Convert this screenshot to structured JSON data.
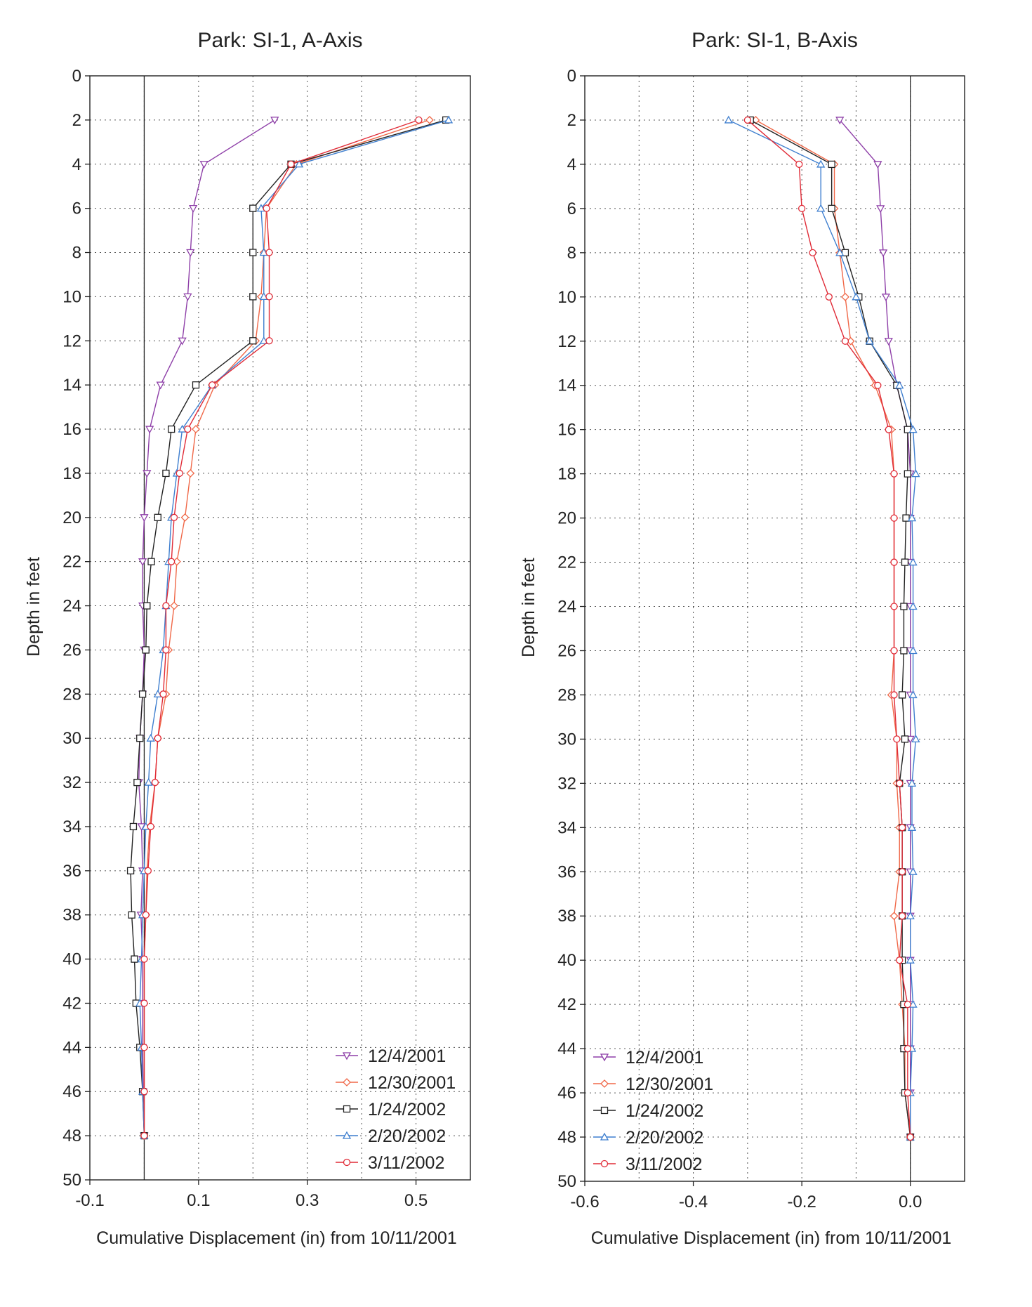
{
  "chart_data": [
    {
      "type": "line",
      "title": "Park: SI-1, A-Axis",
      "xlabel": "Cumulative Displacement (in) from 10/11/2001",
      "ylabel": "Depth in feet",
      "xlim": [
        -0.1,
        0.6
      ],
      "ylim": [
        0,
        50
      ],
      "y_inverted": true,
      "x_ticks": [
        "-0.1",
        "0.1",
        "0.3",
        "0.5"
      ],
      "x_tick_values": [
        -0.1,
        0.1,
        0.3,
        0.5
      ],
      "x_grid_values": [
        0.0,
        0.1,
        0.2,
        0.3,
        0.4,
        0.5
      ],
      "y_ticks": [
        "0",
        "2",
        "4",
        "6",
        "8",
        "10",
        "12",
        "14",
        "16",
        "18",
        "20",
        "22",
        "24",
        "26",
        "28",
        "30",
        "32",
        "34",
        "36",
        "38",
        "40",
        "42",
        "44",
        "46",
        "48",
        "50"
      ],
      "zero_line": 0,
      "grid": true,
      "legend_position": "bottom-right",
      "depth": [
        2,
        4,
        6,
        8,
        10,
        12,
        14,
        16,
        18,
        20,
        22,
        24,
        26,
        28,
        30,
        32,
        34,
        36,
        38,
        40,
        42,
        44,
        46,
        48
      ],
      "series": [
        {
          "name": "12/4/2001",
          "color": "#8e3fa8",
          "marker": "triangle-down",
          "values": [
            0.24,
            0.11,
            0.09,
            0.085,
            0.08,
            0.07,
            0.03,
            0.01,
            0.005,
            0.0,
            -0.003,
            -0.003,
            0.0,
            -0.003,
            -0.008,
            -0.01,
            -0.005,
            -0.003,
            -0.006,
            -0.003,
            -0.003,
            -0.003,
            -0.002,
            0.0
          ]
        },
        {
          "name": "12/30/2001",
          "color": "#f06848",
          "marker": "diamond",
          "values": [
            0.525,
            0.28,
            0.225,
            0.22,
            0.215,
            0.205,
            0.13,
            0.095,
            0.085,
            0.075,
            0.06,
            0.055,
            0.045,
            0.04,
            0.025,
            0.02,
            0.01,
            0.005,
            0.003,
            0.0,
            0.0,
            0.0,
            0.0,
            0.0
          ]
        },
        {
          "name": "1/24/2002",
          "color": "#222222",
          "marker": "square",
          "values": [
            0.555,
            0.27,
            0.2,
            0.2,
            0.2,
            0.2,
            0.095,
            0.05,
            0.04,
            0.025,
            0.013,
            0.005,
            0.003,
            -0.003,
            -0.008,
            -0.013,
            -0.02,
            -0.025,
            -0.023,
            -0.018,
            -0.015,
            -0.008,
            -0.003,
            0.0
          ]
        },
        {
          "name": "2/20/2002",
          "color": "#3f7fcf",
          "marker": "triangle-up",
          "values": [
            0.56,
            0.285,
            0.215,
            0.22,
            0.22,
            0.22,
            0.125,
            0.07,
            0.06,
            0.05,
            0.045,
            0.04,
            0.035,
            0.025,
            0.012,
            0.008,
            0.003,
            0.0,
            -0.003,
            -0.005,
            -0.008,
            -0.005,
            -0.003,
            0.0
          ]
        },
        {
          "name": "3/11/2002",
          "color": "#e02b37",
          "marker": "circle",
          "values": [
            0.505,
            0.27,
            0.225,
            0.23,
            0.23,
            0.23,
            0.125,
            0.08,
            0.065,
            0.055,
            0.05,
            0.04,
            0.04,
            0.035,
            0.025,
            0.02,
            0.012,
            0.007,
            0.003,
            0.0,
            0.0,
            0.0,
            0.0,
            0.0
          ]
        }
      ]
    },
    {
      "type": "line",
      "title": "Park: SI-1, B-Axis",
      "xlabel": "Cumulative Displacement (in) from 10/11/2001",
      "ylabel": "Depth in feet",
      "xlim": [
        -0.6,
        0.1
      ],
      "ylim": [
        0,
        50
      ],
      "y_inverted": true,
      "x_ticks": [
        "-0.6",
        "-0.4",
        "-0.2",
        "0.0"
      ],
      "x_tick_values": [
        -0.6,
        -0.4,
        -0.2,
        0.0
      ],
      "x_grid_values": [
        -0.5,
        -0.4,
        -0.3,
        -0.2,
        -0.1,
        0.0
      ],
      "y_ticks": [
        "0",
        "2",
        "4",
        "6",
        "8",
        "10",
        "12",
        "14",
        "16",
        "18",
        "20",
        "22",
        "24",
        "26",
        "28",
        "30",
        "32",
        "34",
        "36",
        "38",
        "40",
        "42",
        "44",
        "46",
        "48",
        "50"
      ],
      "zero_line": 0,
      "grid": true,
      "legend_position": "bottom-left",
      "depth": [
        2,
        4,
        6,
        8,
        10,
        12,
        14,
        16,
        18,
        20,
        22,
        24,
        26,
        28,
        30,
        32,
        34,
        36,
        38,
        40,
        42,
        44,
        46,
        48
      ],
      "series": [
        {
          "name": "12/4/2001",
          "color": "#8e3fa8",
          "marker": "triangle-down",
          "values": [
            -0.13,
            -0.06,
            -0.055,
            -0.05,
            -0.045,
            -0.04,
            -0.025,
            -0.005,
            0.0,
            0.0,
            0.0,
            0.0,
            0.0,
            0.0,
            0.0,
            0.0,
            0.0,
            0.0,
            0.0,
            0.0,
            0.0,
            0.0,
            0.0,
            0.0
          ]
        },
        {
          "name": "12/30/2001",
          "color": "#f06848",
          "marker": "diamond",
          "values": [
            -0.285,
            -0.14,
            -0.14,
            -0.13,
            -0.12,
            -0.11,
            -0.065,
            -0.035,
            -0.03,
            -0.03,
            -0.03,
            -0.03,
            -0.03,
            -0.035,
            -0.025,
            -0.025,
            -0.02,
            -0.02,
            -0.03,
            -0.02,
            -0.015,
            -0.01,
            -0.01,
            0.0
          ]
        },
        {
          "name": "1/24/2002",
          "color": "#222222",
          "marker": "square",
          "values": [
            -0.295,
            -0.145,
            -0.145,
            -0.12,
            -0.095,
            -0.075,
            -0.025,
            -0.005,
            -0.005,
            -0.008,
            -0.01,
            -0.012,
            -0.012,
            -0.015,
            -0.01,
            -0.02,
            -0.015,
            -0.015,
            -0.015,
            -0.015,
            -0.012,
            -0.012,
            -0.01,
            0.0
          ]
        },
        {
          "name": "2/20/2002",
          "color": "#3f7fcf",
          "marker": "triangle-up",
          "values": [
            -0.335,
            -0.165,
            -0.165,
            -0.13,
            -0.1,
            -0.075,
            -0.02,
            0.005,
            0.01,
            0.003,
            0.005,
            0.005,
            0.005,
            0.005,
            0.01,
            0.003,
            0.003,
            0.005,
            0.0,
            0.0,
            0.005,
            0.003,
            0.0,
            0.0
          ]
        },
        {
          "name": "3/11/2002",
          "color": "#e02b37",
          "marker": "circle",
          "values": [
            -0.3,
            -0.205,
            -0.2,
            -0.18,
            -0.15,
            -0.12,
            -0.06,
            -0.04,
            -0.03,
            -0.03,
            -0.03,
            -0.03,
            -0.03,
            -0.03,
            -0.025,
            -0.02,
            -0.015,
            -0.015,
            -0.015,
            -0.02,
            -0.005,
            -0.005,
            -0.005,
            0.0
          ]
        }
      ]
    }
  ]
}
